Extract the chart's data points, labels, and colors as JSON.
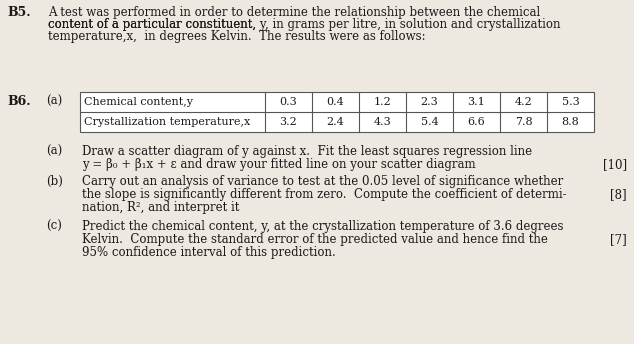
{
  "bg_color": "#ede9e0",
  "text_color": "#1a1a1a",
  "table_border_color": "#555555",
  "font_size": 8.5,
  "font_size_bold": 9.0,
  "b5_label": "B5.",
  "b5_line1": "A test was performed in order to determine the relationship between the chemical",
  "b5_line2_pre": "content of a particular constituent, ",
  "b5_line2_y": "y,",
  "b5_line2_mid": " ",
  "b5_line2_it": "in grams per litre,",
  "b5_line2_post": " in solution and crystallization",
  "b5_line3_pre": "temperature,",
  "b5_line3_x": "x,",
  "b5_line3_it": " in degrees Kelvin.",
  "b5_line3_post": "  The results were as follows:",
  "b6_label": "B6.",
  "a_label": "(a)",
  "table_row1_label": "Chemical content,",
  "table_row1_y": "y",
  "table_row2_label": "Crystallization temperature,",
  "table_row2_x": "x",
  "table_y_vals": [
    "0.3",
    "0.4",
    "1.2",
    "2.3",
    "3.1",
    "4.2",
    "5.3"
  ],
  "table_x_vals": [
    "3.2",
    "2.4",
    "4.3",
    "5.4",
    "6.6",
    "7.8",
    "8.8"
  ],
  "pa_label": "(a)",
  "pa_line1": "Draw a scatter diagram of ",
  "pa_line1_y": "y",
  "pa_line1_mid": " against ",
  "pa_line1_x": "x.",
  "pa_line1_post": "  Fit the least squares regression line",
  "pa_line2": "y = β₀ + β₁x + ε and draw your fitted line on your scatter diagram",
  "pa_mark": "[10]",
  "pb_label": "(b)",
  "pb_line1": "Carry out an analysis of variance to test at the 0.05 level of significance whether",
  "pb_line2": "the slope is significantly different from zero.  Compute the coefficient of determi-",
  "pb_mark": "[8]",
  "pb_line3": "nation, R², and interpret it",
  "pc_label": "(c)",
  "pc_line1": "Predict the chemical content, y, at the crystallization temperature of 3.6 degrees",
  "pc_line2": "Kelvin.  Compute the standard error of the predicted value and hence find the",
  "pc_mark": "[7]",
  "pc_line3": "95% confidence interval of this prediction."
}
